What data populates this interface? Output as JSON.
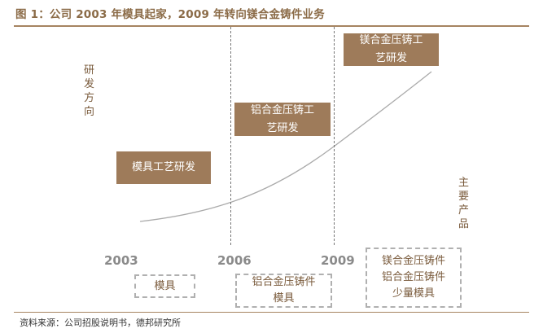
{
  "title": "图 1：公司 2003 年模具起家，2009 年转向镁合金铸件业务",
  "source": "资料来源：公司招股说明书，德邦研究所",
  "axis_labels": {
    "left": [
      "研",
      "发",
      "方",
      "向"
    ],
    "right": [
      "主",
      "要",
      "产",
      "品"
    ]
  },
  "years": [
    "2003",
    "2006",
    "2009"
  ],
  "rd_boxes": [
    "模具工艺研发",
    "铝合金压铸工\n艺研发",
    "镁合金压铸工\n艺研发"
  ],
  "product_boxes": [
    "模具",
    "铝合金压铸件\n模具",
    "镁合金压铸件\n铝合金压铸件\n少量模具"
  ],
  "colors": {
    "accent": "#9e7b5a",
    "title": "#8b6b47",
    "rule": "#a68461"
  }
}
